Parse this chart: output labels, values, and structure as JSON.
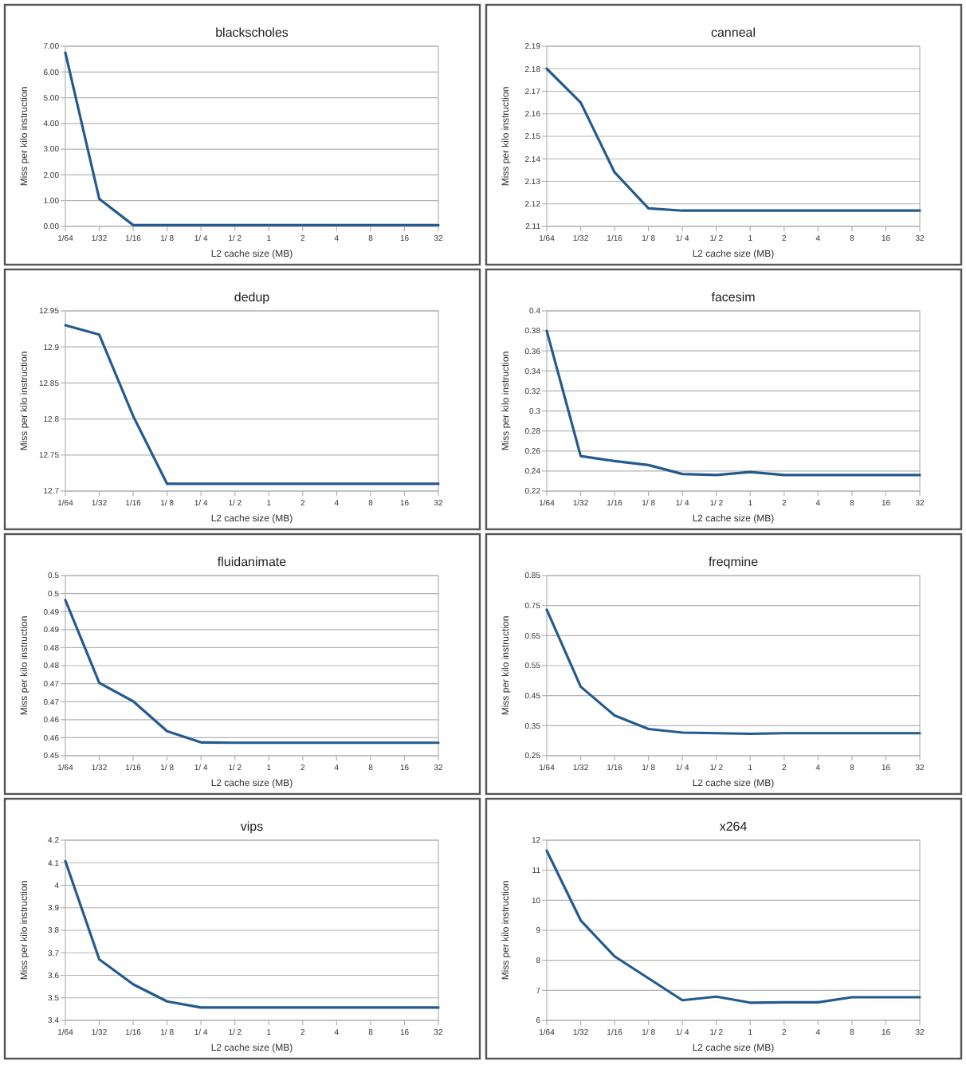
{
  "chart_data": [
    {
      "type": "line",
      "title": "blackscholes",
      "xlabel": "L2 cache size (MB)",
      "ylabel": "Miss per kilo instruction",
      "categories": [
        "1/64",
        "1/32",
        "1/16",
        "1/ 8",
        "1/ 4",
        "1/ 2",
        "1",
        "2",
        "4",
        "8",
        "16",
        "32"
      ],
      "series": [
        {
          "color": "#245a8e",
          "values": [
            6.75,
            1.07,
            0.05,
            0.05,
            0.05,
            0.05,
            0.05,
            0.05,
            0.05,
            0.05,
            0.05,
            0.05
          ]
        }
      ],
      "ylim": [
        0,
        7
      ],
      "yticks": [
        {
          "value": 0,
          "label": "0.00"
        },
        {
          "value": 1,
          "label": "1.00"
        },
        {
          "value": 2,
          "label": "2.00"
        },
        {
          "value": 3,
          "label": "3.00"
        },
        {
          "value": 4,
          "label": "4.00"
        },
        {
          "value": 5,
          "label": "5.00"
        },
        {
          "value": 6,
          "label": "6.00"
        },
        {
          "value": 7,
          "label": "7.00"
        }
      ],
      "grid": "y",
      "marker": "none",
      "line_style": "solid"
    },
    {
      "type": "line",
      "title": "canneal",
      "xlabel": "L2 cache size (MB)",
      "ylabel": "Miss per kilo instruction",
      "categories": [
        "1/64",
        "1/32",
        "1/16",
        "1/ 8",
        "1/ 4",
        "1/ 2",
        "1",
        "2",
        "4",
        "8",
        "16",
        "32"
      ],
      "series": [
        {
          "color": "#245a8e",
          "values": [
            2.18,
            2.165,
            2.134,
            2.118,
            2.117,
            2.117,
            2.117,
            2.117,
            2.117,
            2.117,
            2.117,
            2.117
          ]
        }
      ],
      "ylim": [
        2.11,
        2.19
      ],
      "yticks": [
        2.11,
        2.12,
        2.13,
        2.14,
        2.15,
        2.16,
        2.17,
        2.18,
        2.19
      ],
      "grid": "y",
      "marker": "none",
      "line_style": "solid"
    },
    {
      "type": "line",
      "title": "dedup",
      "xlabel": "L2 cache size (MB)",
      "ylabel": "Miss per kilo instruction",
      "categories": [
        "1/64",
        "1/32",
        "1/16",
        "1/ 8",
        "1/ 4",
        "1/ 2",
        "1",
        "2",
        "4",
        "8",
        "16",
        "32"
      ],
      "series": [
        {
          "color": "#245a8e",
          "values": [
            12.93,
            12.917,
            12.804,
            12.71,
            12.71,
            12.71,
            12.71,
            12.71,
            12.71,
            12.71,
            12.71,
            12.71
          ]
        }
      ],
      "ylim": [
        12.7,
        12.95
      ],
      "yticks": [
        12.7,
        12.75,
        12.8,
        12.85,
        12.9,
        12.95
      ],
      "grid": "y",
      "marker": "none",
      "line_style": "solid"
    },
    {
      "type": "line",
      "title": "facesim",
      "xlabel": "L2 cache size (MB)",
      "ylabel": "Miss per kilo instruction",
      "categories": [
        "1/64",
        "1/32",
        "1/16",
        "1/ 8",
        "1/ 4",
        "1/ 2",
        "1",
        "2",
        "4",
        "8",
        "16",
        "32"
      ],
      "series": [
        {
          "color": "#245a8e",
          "values": [
            0.38,
            0.255,
            0.25,
            0.246,
            0.237,
            0.236,
            0.239,
            0.236,
            0.236,
            0.236,
            0.236,
            0.236
          ]
        }
      ],
      "ylim": [
        0.22,
        0.4
      ],
      "yticks": [
        0.22,
        0.24,
        0.26,
        0.28,
        0.3,
        0.32,
        0.34,
        0.36,
        0.38,
        0.4
      ],
      "grid": "y",
      "marker": "none",
      "line_style": "solid"
    },
    {
      "type": "line",
      "title": "fluidanimate",
      "xlabel": "L2 cache size (MB)",
      "ylabel": "Miss per kilo instruction",
      "categories": [
        "1/64",
        "1/32",
        "1/16",
        "1/ 8",
        "1/ 4",
        "1/ 2",
        "1",
        "2",
        "4",
        "8",
        "16",
        "32"
      ],
      "series": [
        {
          "color": "#245a8e",
          "values": [
            0.4932,
            0.4702,
            0.4651,
            0.4568,
            0.4537,
            0.4536,
            0.4536,
            0.4536,
            0.4536,
            0.4536,
            0.4536,
            0.4536
          ]
        }
      ],
      "ylim": [
        0.45,
        0.5
      ],
      "yticks": [
        0.45,
        {
          "value": 0.455,
          "label": "0.46"
        },
        0.46,
        {
          "value": 0.465,
          "label": "0.47"
        },
        0.47,
        {
          "value": 0.475,
          "label": "0.48"
        },
        0.48,
        {
          "value": 0.485,
          "label": "0.49"
        },
        0.49,
        {
          "value": 0.495,
          "label": "0.5"
        },
        0.5
      ],
      "grid": "y",
      "marker": "none",
      "line_style": "solid"
    },
    {
      "type": "line",
      "title": "freqmine",
      "xlabel": "L2 cache size (MB)",
      "ylabel": "Miss per kilo instruction",
      "categories": [
        "1/64",
        "1/32",
        "1/16",
        "1/ 8",
        "1/ 4",
        "1/ 2",
        "1",
        "2",
        "4",
        "8",
        "16",
        "32"
      ],
      "series": [
        {
          "color": "#245a8e",
          "values": [
            0.736,
            0.48,
            0.384,
            0.339,
            0.327,
            0.325,
            0.323,
            0.325,
            0.325,
            0.325,
            0.325,
            0.325
          ]
        }
      ],
      "ylim": [
        0.25,
        0.85
      ],
      "yticks": [
        0.25,
        0.35,
        0.45,
        0.55,
        0.65,
        0.75,
        0.85
      ],
      "grid": "y",
      "marker": "none",
      "line_style": "solid"
    },
    {
      "type": "line",
      "title": "vips",
      "xlabel": "L2 cache size (MB)",
      "ylabel": "Miss per kilo instruction",
      "categories": [
        "1/64",
        "1/32",
        "1/16",
        "1/ 8",
        "1/ 4",
        "1/ 2",
        "1",
        "2",
        "4",
        "8",
        "16",
        "32"
      ],
      "series": [
        {
          "color": "#245a8e",
          "values": [
            4.107,
            3.671,
            3.56,
            3.484,
            3.457,
            3.457,
            3.457,
            3.457,
            3.457,
            3.457,
            3.457,
            3.457
          ]
        }
      ],
      "ylim": [
        3.4,
        4.2
      ],
      "yticks": [
        3.4,
        3.5,
        3.6,
        3.7,
        3.8,
        3.9,
        4,
        4.1,
        4.2
      ],
      "grid": "y",
      "marker": "none",
      "line_style": "solid"
    },
    {
      "type": "line",
      "title": "x264",
      "xlabel": "L2 cache size (MB)",
      "ylabel": "Miss per kilo instruction",
      "categories": [
        "1/64",
        "1/32",
        "1/16",
        "1/ 8",
        "1/ 4",
        "1/ 2",
        "1",
        "2",
        "4",
        "8",
        "16",
        "32"
      ],
      "series": [
        {
          "color": "#245a8e",
          "values": [
            11.65,
            9.33,
            8.13,
            7.4,
            6.67,
            6.79,
            6.59,
            6.6,
            6.6,
            6.77,
            6.77,
            6.77
          ]
        }
      ],
      "ylim": [
        6,
        12
      ],
      "yticks": [
        6,
        7,
        8,
        9,
        10,
        11,
        12
      ],
      "grid": "y",
      "marker": "none",
      "line_style": "solid"
    }
  ]
}
